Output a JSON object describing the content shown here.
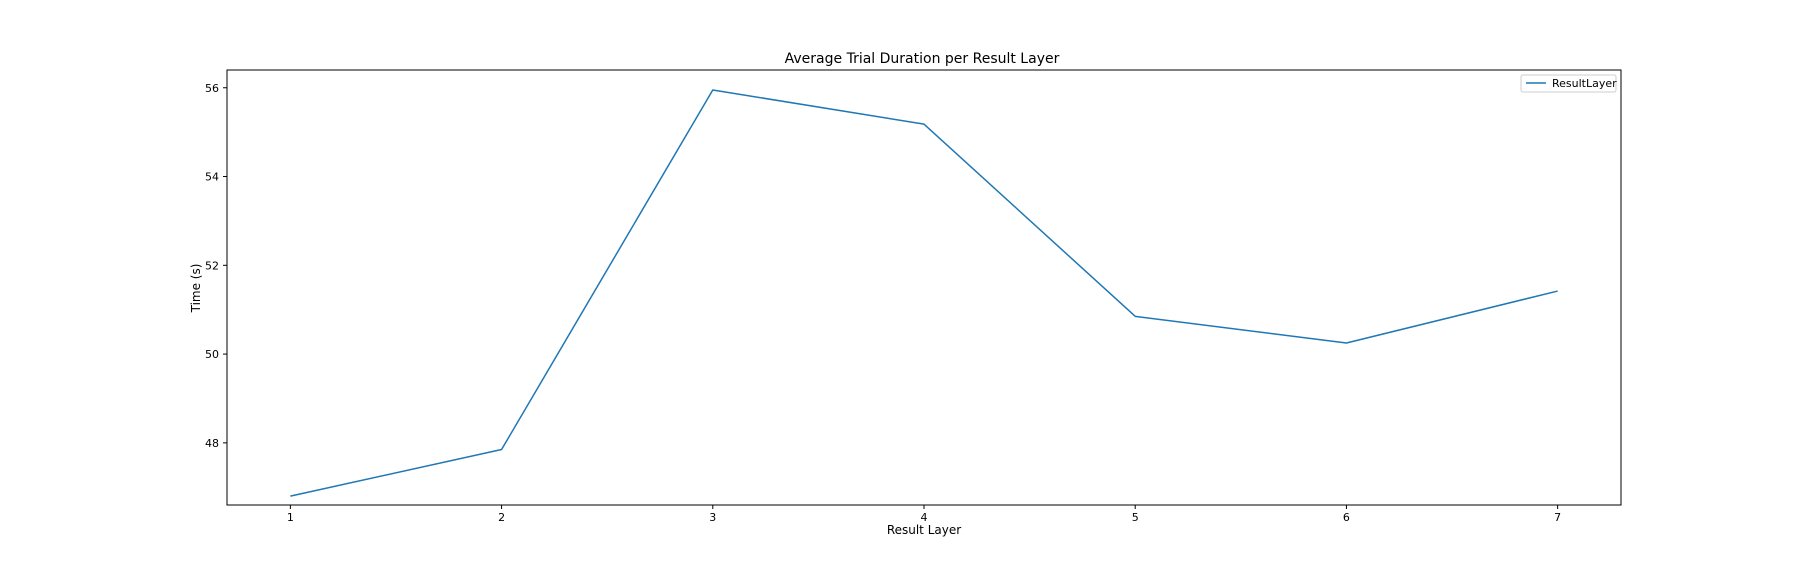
{
  "chart_data": {
    "type": "line",
    "title": "Average Trial Duration per Result Layer",
    "xlabel": "Result Layer",
    "ylabel": "Time (s)",
    "x": [
      1,
      2,
      3,
      4,
      5,
      6,
      7
    ],
    "xlim": [
      0.7,
      7.3
    ],
    "ylim": [
      46.6,
      56.4
    ],
    "x_ticks": [
      1,
      2,
      3,
      4,
      5,
      6,
      7
    ],
    "y_ticks": [
      48,
      50,
      52,
      54,
      56
    ],
    "series": [
      {
        "name": "ResultLayer",
        "color": "#1f77b4",
        "values": [
          46.8,
          47.85,
          55.95,
          55.18,
          50.85,
          50.25,
          51.42
        ]
      }
    ],
    "grid": false,
    "legend_position": "top-right"
  }
}
